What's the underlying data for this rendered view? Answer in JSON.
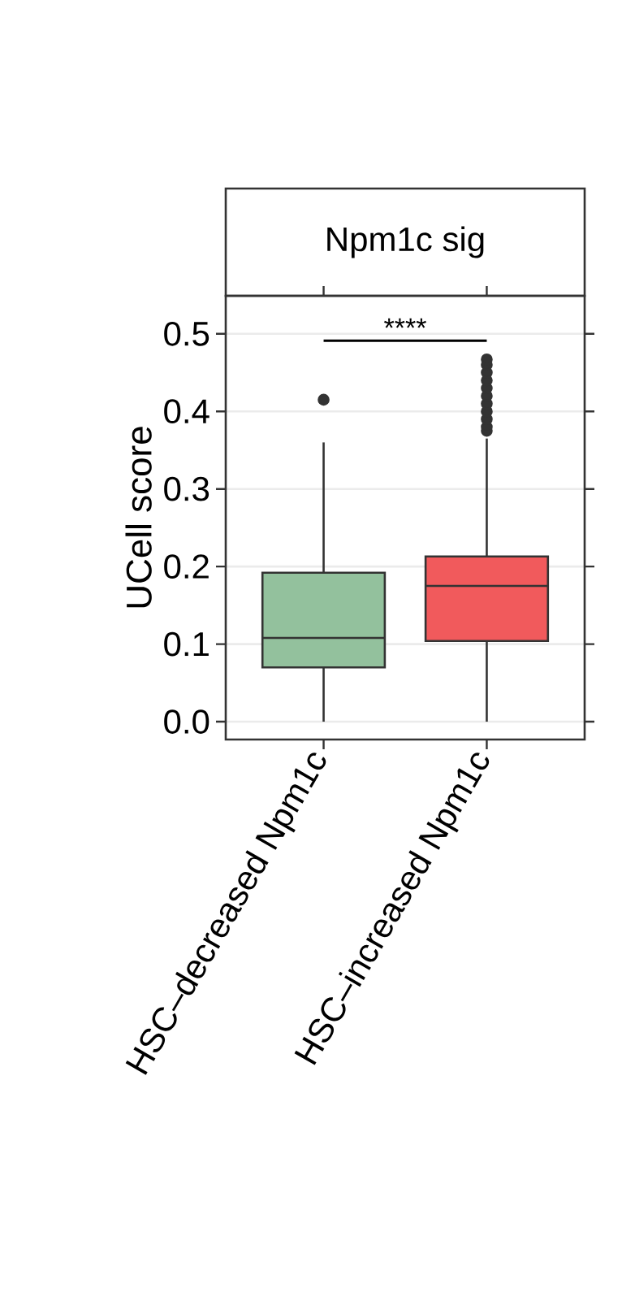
{
  "chart_data": {
    "type": "box",
    "title": "Npm1c sig",
    "ylabel": "UCell score",
    "categories": [
      "HSC–decreased Npm1c",
      "HSC–increased Npm1c"
    ],
    "colors": [
      "#93c19d",
      "#f15a5c"
    ],
    "boxes": [
      {
        "low": 0.0,
        "q1": 0.07,
        "median": 0.108,
        "q3": 0.192,
        "high": 0.36,
        "outliers": [
          0.415
        ]
      },
      {
        "low": 0.0,
        "q1": 0.104,
        "median": 0.175,
        "q3": 0.213,
        "high": 0.365,
        "outliers": [
          0.375,
          0.38,
          0.39,
          0.4,
          0.41,
          0.42,
          0.43,
          0.44,
          0.45,
          0.46,
          0.467
        ]
      }
    ],
    "ylim": [
      -0.023,
      0.549
    ],
    "yticks": [
      {
        "value": 0,
        "label": "0.0"
      },
      {
        "value": 0.1,
        "label": "0.1"
      },
      {
        "value": 0.2,
        "label": "0.2"
      },
      {
        "value": 0.3,
        "label": "0.3"
      },
      {
        "value": 0.4,
        "label": "0.4"
      },
      {
        "value": 0.5,
        "label": "0.5"
      }
    ],
    "grid": "y",
    "annotations": [
      "****"
    ]
  }
}
